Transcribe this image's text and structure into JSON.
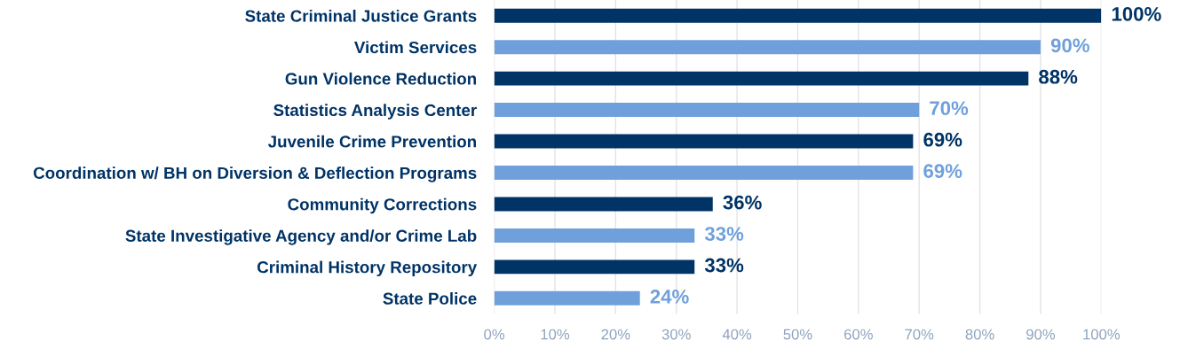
{
  "chart_data": {
    "type": "bar",
    "orientation": "horizontal",
    "categories": [
      "State Criminal Justice Grants",
      "Victim Services",
      "Gun Violence Reduction",
      "Statistics Analysis Center",
      "Juvenile Crime Prevention",
      "Coordination w/ BH on Diversion & Deflection Programs",
      "Community Corrections",
      "State Investigative Agency and/or Crime Lab",
      "Criminal History Repository",
      "State Police"
    ],
    "values": [
      100,
      90,
      88,
      70,
      69,
      69,
      36,
      33,
      33,
      24
    ],
    "value_labels": [
      "100%",
      "90%",
      "88%",
      "70%",
      "69%",
      "69%",
      "36%",
      "33%",
      "33%",
      "24%"
    ],
    "colors": [
      "#003366",
      "#6fa0dc",
      "#003366",
      "#6fa0dc",
      "#003366",
      "#6fa0dc",
      "#003366",
      "#6fa0dc",
      "#003366",
      "#6fa0dc"
    ],
    "xlim": [
      0,
      100
    ],
    "xticks": [
      {
        "value": 0,
        "label": "0%"
      },
      {
        "value": 10,
        "label": "10%"
      },
      {
        "value": 20,
        "label": "20%"
      },
      {
        "value": 30,
        "label": "30%"
      },
      {
        "value": 40,
        "label": "40%"
      },
      {
        "value": 50,
        "label": "50%"
      },
      {
        "value": 60,
        "label": "60%"
      },
      {
        "value": 70,
        "label": "70%"
      },
      {
        "value": 80,
        "label": "80%"
      },
      {
        "value": 90,
        "label": "90%"
      },
      {
        "value": 100,
        "label": "100%"
      }
    ],
    "grid": "x",
    "legend": false
  }
}
